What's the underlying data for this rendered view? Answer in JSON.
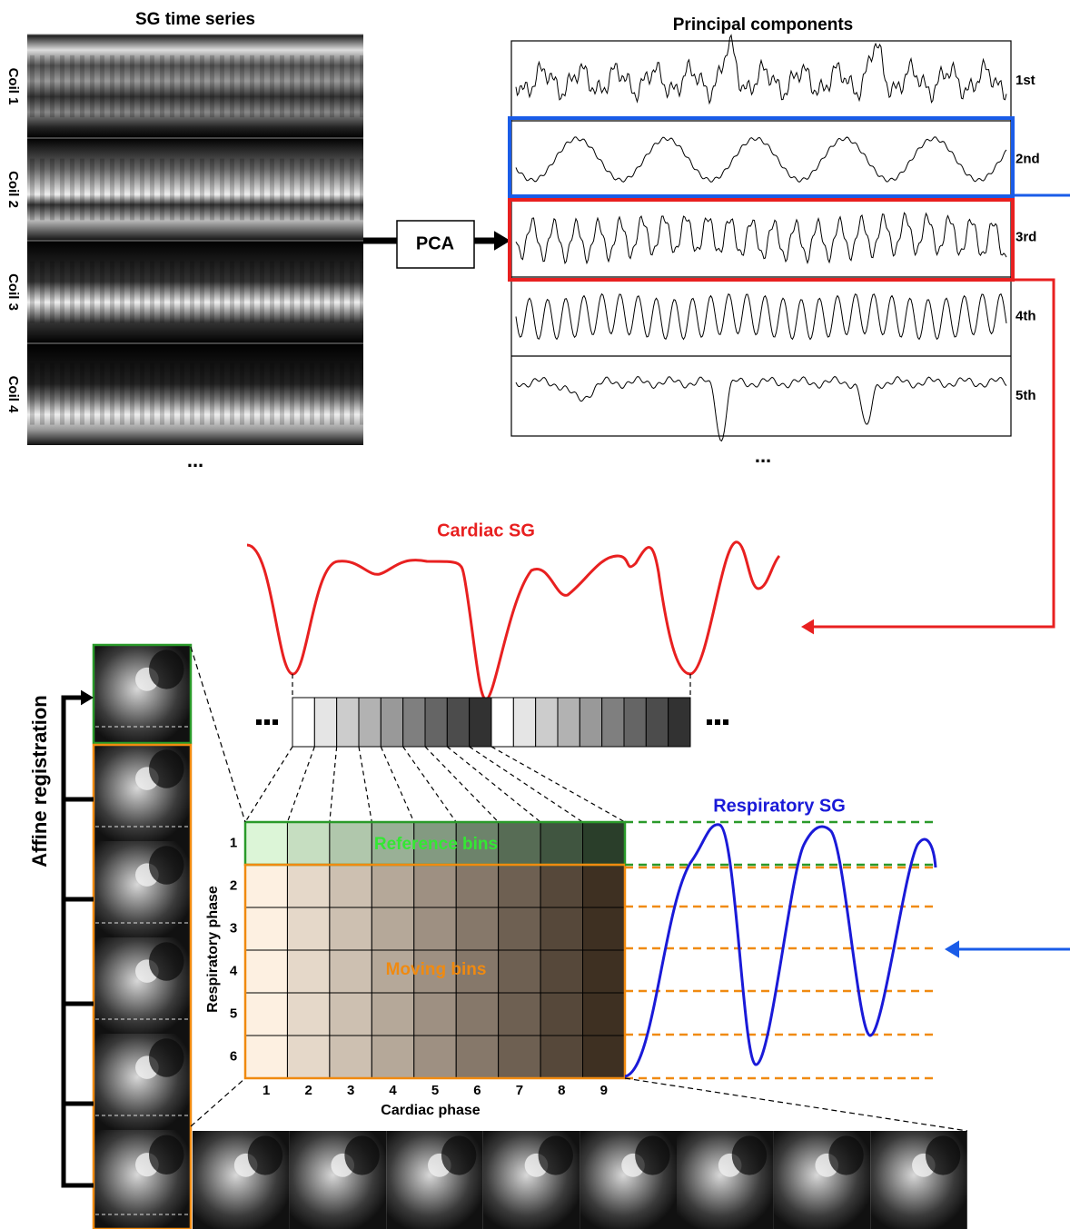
{
  "left_panel": {
    "title": "SG time series",
    "coils": [
      "Coil 1",
      "Coil 2",
      "Coil 3",
      "Coil 4"
    ],
    "ellipsis": "..."
  },
  "pca_box": {
    "label": "PCA"
  },
  "right_panel": {
    "title": "Principal components",
    "components": [
      "1st",
      "2nd",
      "3rd",
      "4th",
      "5th"
    ],
    "ellipsis": "..."
  },
  "cardiac_sg": {
    "label": "Cardiac SG"
  },
  "respiratory_sg": {
    "label": "Respiratory SG"
  },
  "binning_grid": {
    "reference_label": "Reference bins",
    "moving_label": "Moving bins",
    "row_axis_label": "Respiratory phase",
    "col_axis_label": "Cardiac phase",
    "rows": [
      1,
      2,
      3,
      4,
      5,
      6
    ],
    "cols": [
      1,
      2,
      3,
      4,
      5,
      6,
      7,
      8,
      9
    ]
  },
  "registration": {
    "label": "Affine registration"
  }
}
